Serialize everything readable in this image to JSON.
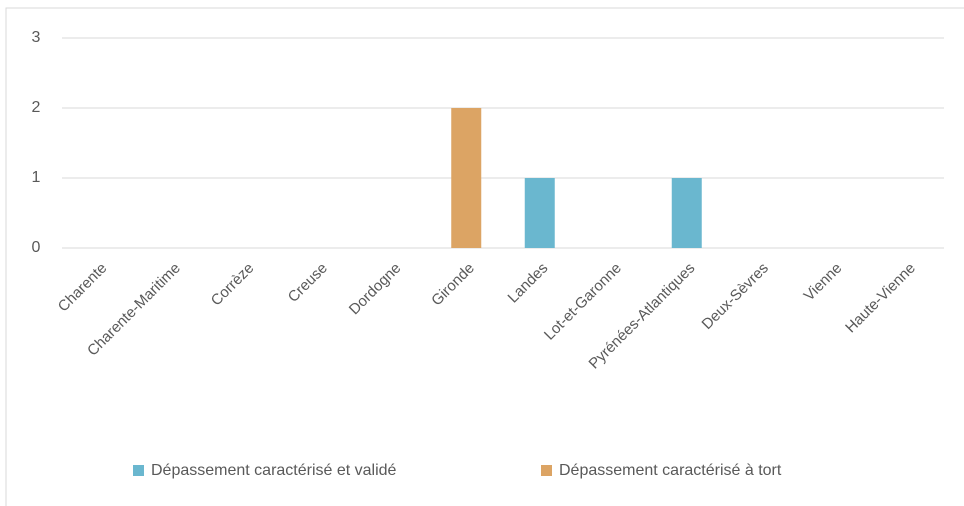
{
  "chart_data": {
    "type": "bar",
    "stacked": true,
    "categories": [
      "Charente",
      "Charente-Maritime",
      "Corrèze",
      "Creuse",
      "Dordogne",
      "Gironde",
      "Landes",
      "Lot-et-Garonne",
      "Pyrénées-Atlantiques",
      "Deux-Sèvres",
      "Vienne",
      "Haute-Vienne"
    ],
    "series": [
      {
        "name": "Dépassement caractérisé et validé",
        "color": "#6ab7cf",
        "values": [
          0,
          0,
          0,
          0,
          0,
          0,
          1,
          0,
          1,
          0,
          0,
          0
        ]
      },
      {
        "name": "Dépassement caractérisé à tort",
        "color": "#dca464",
        "values": [
          0,
          0,
          0,
          0,
          0,
          2,
          0,
          0,
          0,
          0,
          0,
          0
        ]
      }
    ],
    "ylim": [
      0,
      3
    ],
    "yticks": [
      0,
      1,
      2,
      3
    ],
    "grid": true,
    "legend": "bottom"
  }
}
